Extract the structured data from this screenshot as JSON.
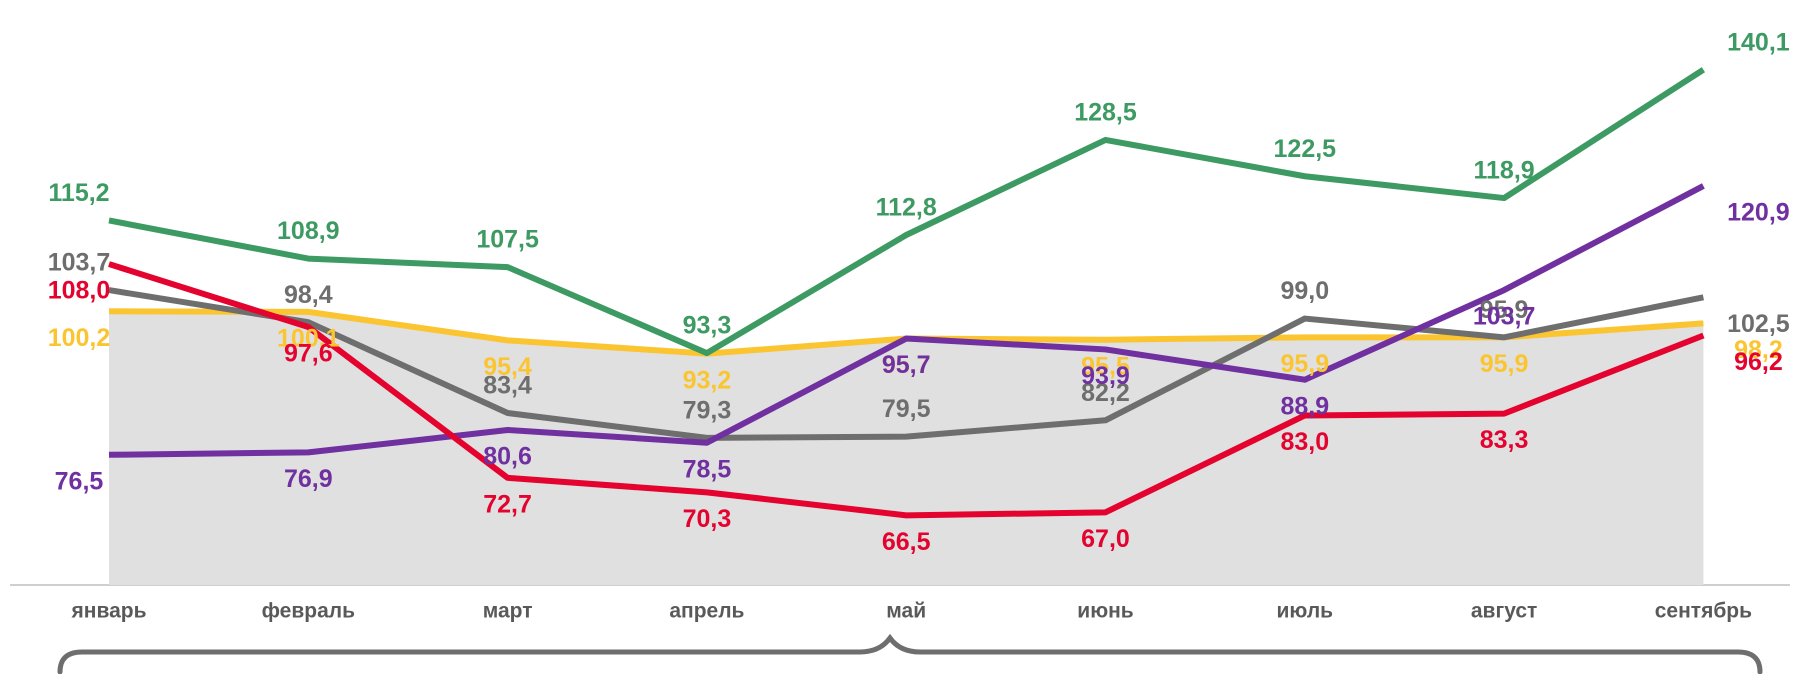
{
  "chart_data": {
    "type": "line",
    "categories": [
      "январь",
      "февраль",
      "март",
      "апрель",
      "май",
      "июнь",
      "июль",
      "август",
      "сентябрь"
    ],
    "ylim": [
      55,
      145
    ],
    "series": [
      {
        "color": "#fbc531",
        "fill": "#e0e0e0",
        "values": [
          100.2,
          100.1,
          95.4,
          93.2,
          95.7,
          95.5,
          95.9,
          95.9,
          98.2
        ],
        "value_labels": [
          "100,2",
          "100,1",
          "95,4",
          "93,2",
          "95,7",
          "95,5",
          "95,9",
          "95,9",
          "98,2"
        ]
      },
      {
        "color": "#3d9a62",
        "values": [
          115.2,
          108.9,
          107.5,
          93.3,
          112.8,
          128.5,
          122.5,
          118.9,
          140.1
        ],
        "value_labels": [
          "115,2",
          "108,9",
          "107,5",
          "93,3",
          "112,8",
          "128,5",
          "122,5",
          "118,9",
          "140,1"
        ]
      },
      {
        "color": "#6e6e6e",
        "values": [
          103.7,
          98.4,
          83.4,
          79.3,
          79.5,
          82.2,
          99.0,
          95.9,
          102.5
        ],
        "value_labels": [
          "103,7",
          "98,4",
          "83,4",
          "79,3",
          "79,5",
          "82,2",
          "99,0",
          "95,9",
          "102,5"
        ]
      },
      {
        "color": "#7030a0",
        "values": [
          76.5,
          76.9,
          80.6,
          78.5,
          95.7,
          93.9,
          88.9,
          103.7,
          120.9
        ],
        "value_labels": [
          "76,5",
          "76,9",
          "80,6",
          "78,5",
          "95,7",
          "93,9",
          "88,9",
          "103,7",
          "120,9"
        ]
      },
      {
        "color": "#e4032e",
        "values": [
          108.0,
          97.6,
          72.7,
          70.3,
          66.5,
          67.0,
          83.0,
          83.3,
          96.2
        ],
        "value_labels": [
          "108,0",
          "97,6",
          "72,7",
          "70,3",
          "66,5",
          "67,0",
          "83,0",
          "83,3",
          "96,2"
        ]
      }
    ]
  }
}
